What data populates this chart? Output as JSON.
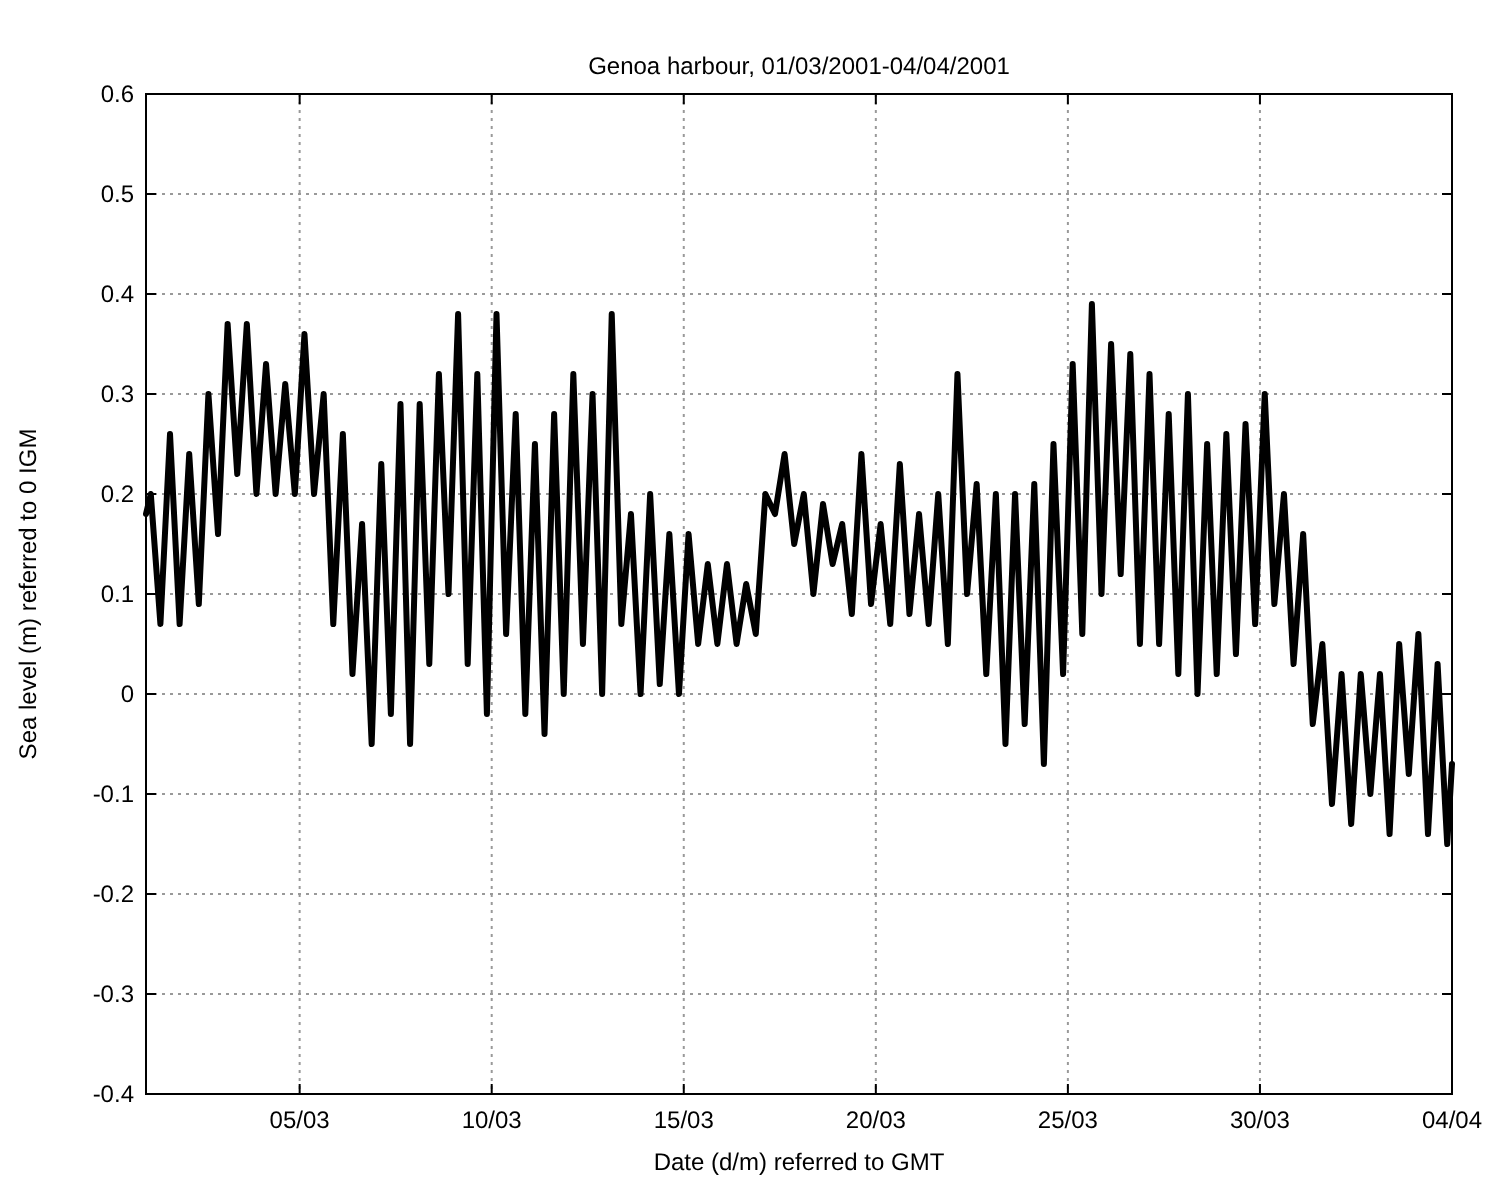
{
  "chart_data": {
    "type": "line",
    "title": "Genoa harbour, 01/03/2001-04/04/2001",
    "xlabel": "Date (d/m) referred to GMT",
    "ylabel": "Sea level (m) referred to 0 IGM",
    "xlim": [
      "2001-03-01",
      "2001-04-04"
    ],
    "xticks": [
      {
        "value": "2001-03-05",
        "label": "05/03"
      },
      {
        "value": "2001-03-10",
        "label": "10/03"
      },
      {
        "value": "2001-03-15",
        "label": "15/03"
      },
      {
        "value": "2001-03-20",
        "label": "20/03"
      },
      {
        "value": "2001-03-25",
        "label": "25/03"
      },
      {
        "value": "2001-03-30",
        "label": "30/03"
      },
      {
        "value": "2001-04-04",
        "label": "04/04"
      }
    ],
    "ylim": [
      -0.4,
      0.6
    ],
    "yticks": [
      -0.4,
      -0.3,
      -0.2,
      -0.1,
      0,
      0.1,
      0.2,
      0.3,
      0.4,
      0.5,
      0.6
    ],
    "grid": true,
    "marker": "none",
    "line_style": "solid",
    "series": [
      {
        "color": "#000000",
        "x": [
          "2001-03-01T00:00",
          "2001-03-01T03:00",
          "2001-03-01T09:00",
          "2001-03-01T15:00",
          "2001-03-01T21:00",
          "2001-03-02T03:00",
          "2001-03-02T09:00",
          "2001-03-02T15:00",
          "2001-03-02T21:00",
          "2001-03-03T03:00",
          "2001-03-03T09:00",
          "2001-03-03T15:00",
          "2001-03-03T21:00",
          "2001-03-04T03:00",
          "2001-03-04T09:00",
          "2001-03-04T15:00",
          "2001-03-04T21:00",
          "2001-03-05T03:00",
          "2001-03-05T09:00",
          "2001-03-05T15:00",
          "2001-03-05T21:00",
          "2001-03-06T03:00",
          "2001-03-06T09:00",
          "2001-03-06T15:00",
          "2001-03-06T21:00",
          "2001-03-07T03:00",
          "2001-03-07T09:00",
          "2001-03-07T15:00",
          "2001-03-07T21:00",
          "2001-03-08T03:00",
          "2001-03-08T09:00",
          "2001-03-08T15:00",
          "2001-03-08T21:00",
          "2001-03-09T03:00",
          "2001-03-09T09:00",
          "2001-03-09T15:00",
          "2001-03-09T21:00",
          "2001-03-10T03:00",
          "2001-03-10T09:00",
          "2001-03-10T15:00",
          "2001-03-10T21:00",
          "2001-03-11T03:00",
          "2001-03-11T09:00",
          "2001-03-11T15:00",
          "2001-03-11T21:00",
          "2001-03-12T03:00",
          "2001-03-12T09:00",
          "2001-03-12T15:00",
          "2001-03-12T21:00",
          "2001-03-13T03:00",
          "2001-03-13T09:00",
          "2001-03-13T15:00",
          "2001-03-13T21:00",
          "2001-03-14T03:00",
          "2001-03-14T09:00",
          "2001-03-14T15:00",
          "2001-03-14T21:00",
          "2001-03-15T03:00",
          "2001-03-15T09:00",
          "2001-03-15T15:00",
          "2001-03-15T21:00",
          "2001-03-16T03:00",
          "2001-03-16T09:00",
          "2001-03-16T15:00",
          "2001-03-16T21:00",
          "2001-03-17T03:00",
          "2001-03-17T09:00",
          "2001-03-17T15:00",
          "2001-03-17T21:00",
          "2001-03-18T03:00",
          "2001-03-18T09:00",
          "2001-03-18T15:00",
          "2001-03-18T21:00",
          "2001-03-19T03:00",
          "2001-03-19T09:00",
          "2001-03-19T15:00",
          "2001-03-19T21:00",
          "2001-03-20T03:00",
          "2001-03-20T09:00",
          "2001-03-20T15:00",
          "2001-03-20T21:00",
          "2001-03-21T03:00",
          "2001-03-21T09:00",
          "2001-03-21T15:00",
          "2001-03-21T21:00",
          "2001-03-22T03:00",
          "2001-03-22T09:00",
          "2001-03-22T15:00",
          "2001-03-22T21:00",
          "2001-03-23T03:00",
          "2001-03-23T09:00",
          "2001-03-23T15:00",
          "2001-03-23T21:00",
          "2001-03-24T03:00",
          "2001-03-24T09:00",
          "2001-03-24T15:00",
          "2001-03-24T21:00",
          "2001-03-25T03:00",
          "2001-03-25T09:00",
          "2001-03-25T15:00",
          "2001-03-25T21:00",
          "2001-03-26T03:00",
          "2001-03-26T09:00",
          "2001-03-26T15:00",
          "2001-03-26T21:00",
          "2001-03-27T03:00",
          "2001-03-27T09:00",
          "2001-03-27T15:00",
          "2001-03-27T21:00",
          "2001-03-28T03:00",
          "2001-03-28T09:00",
          "2001-03-28T15:00",
          "2001-03-28T21:00",
          "2001-03-29T03:00",
          "2001-03-29T09:00",
          "2001-03-29T15:00",
          "2001-03-29T21:00",
          "2001-03-30T03:00",
          "2001-03-30T09:00",
          "2001-03-30T15:00",
          "2001-03-30T21:00",
          "2001-03-31T03:00",
          "2001-03-31T09:00",
          "2001-03-31T15:00",
          "2001-03-31T21:00",
          "2001-04-01T03:00",
          "2001-04-01T09:00",
          "2001-04-01T15:00",
          "2001-04-01T21:00",
          "2001-04-02T03:00",
          "2001-04-02T09:00",
          "2001-04-02T15:00",
          "2001-04-02T21:00",
          "2001-04-03T03:00",
          "2001-04-03T09:00",
          "2001-04-03T15:00",
          "2001-04-03T21:00",
          "2001-04-04T00:00"
        ],
        "values": [
          0.18,
          0.2,
          0.07,
          0.26,
          0.07,
          0.24,
          0.09,
          0.3,
          0.16,
          0.37,
          0.22,
          0.37,
          0.2,
          0.33,
          0.2,
          0.31,
          0.2,
          0.36,
          0.2,
          0.3,
          0.07,
          0.26,
          0.02,
          0.17,
          -0.05,
          0.23,
          -0.02,
          0.29,
          -0.05,
          0.29,
          0.03,
          0.32,
          0.1,
          0.38,
          0.03,
          0.32,
          -0.02,
          0.38,
          0.06,
          0.28,
          -0.02,
          0.25,
          -0.04,
          0.28,
          0.0,
          0.32,
          0.05,
          0.3,
          0.0,
          0.38,
          0.07,
          0.18,
          0.0,
          0.2,
          0.01,
          0.16,
          0.0,
          0.16,
          0.05,
          0.13,
          0.05,
          0.13,
          0.05,
          0.11,
          0.06,
          0.2,
          0.18,
          0.24,
          0.15,
          0.2,
          0.1,
          0.19,
          0.13,
          0.17,
          0.08,
          0.24,
          0.09,
          0.17,
          0.07,
          0.23,
          0.08,
          0.18,
          0.07,
          0.2,
          0.05,
          0.32,
          0.1,
          0.21,
          0.02,
          0.2,
          -0.05,
          0.2,
          -0.03,
          0.21,
          -0.07,
          0.25,
          0.02,
          0.33,
          0.06,
          0.39,
          0.1,
          0.35,
          0.12,
          0.34,
          0.05,
          0.32,
          0.05,
          0.28,
          0.02,
          0.3,
          0.0,
          0.25,
          0.02,
          0.26,
          0.04,
          0.27,
          0.07,
          0.3,
          0.09,
          0.2,
          0.03,
          0.16,
          -0.03,
          0.05,
          -0.11,
          0.02,
          -0.13,
          0.02,
          -0.1,
          0.02,
          -0.14,
          0.05,
          -0.08,
          0.06,
          -0.14,
          0.03,
          -0.15,
          -0.07
        ]
      }
    ]
  }
}
